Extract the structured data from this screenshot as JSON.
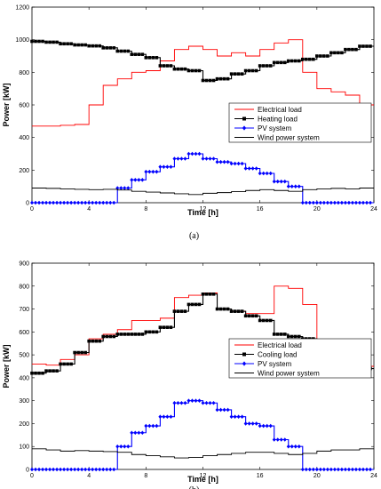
{
  "chart_data": [
    {
      "type": "line",
      "caption": "(a)",
      "xlabel": "Time [h]",
      "ylabel": "Power [kW]",
      "xlim": [
        0,
        24
      ],
      "ylim": [
        0,
        1200
      ],
      "xticks": [
        0,
        4,
        8,
        12,
        16,
        20,
        24
      ],
      "yticks": [
        0,
        200,
        400,
        600,
        800,
        1000,
        1200
      ],
      "grid": false,
      "legend_position": "center-right",
      "series": [
        {
          "name": "Electrical load",
          "color": "#ff0000",
          "marker": "none",
          "x": [
            0,
            1,
            2,
            3,
            4,
            5,
            6,
            7,
            8,
            9,
            10,
            11,
            12,
            13,
            14,
            15,
            16,
            17,
            18,
            19,
            20,
            21,
            22,
            23,
            24
          ],
          "y": [
            470,
            470,
            475,
            480,
            600,
            720,
            760,
            800,
            810,
            870,
            940,
            960,
            940,
            900,
            920,
            900,
            940,
            980,
            1000,
            800,
            700,
            680,
            660,
            600,
            600
          ]
        },
        {
          "name": "Heating load",
          "color": "#000000",
          "marker": "square",
          "x": [
            0,
            1,
            2,
            3,
            4,
            5,
            6,
            7,
            8,
            9,
            10,
            11,
            12,
            13,
            14,
            15,
            16,
            17,
            18,
            19,
            20,
            21,
            22,
            23,
            24
          ],
          "y": [
            990,
            985,
            975,
            968,
            962,
            950,
            930,
            910,
            890,
            840,
            820,
            810,
            750,
            760,
            790,
            810,
            840,
            860,
            870,
            880,
            900,
            920,
            940,
            960,
            970
          ]
        },
        {
          "name": "PV system",
          "color": "#0000ff",
          "marker": "diamond",
          "x": [
            0,
            1,
            2,
            3,
            4,
            5,
            6,
            7,
            8,
            9,
            10,
            11,
            12,
            13,
            14,
            15,
            16,
            17,
            18,
            19,
            20,
            21,
            22,
            23,
            24
          ],
          "y": [
            0,
            0,
            0,
            0,
            0,
            0,
            90,
            140,
            190,
            220,
            270,
            300,
            270,
            250,
            240,
            210,
            180,
            130,
            100,
            0,
            0,
            0,
            0,
            0,
            0
          ]
        },
        {
          "name": "Wind power system",
          "color": "#000000",
          "marker": "none",
          "x": [
            0,
            1,
            2,
            3,
            4,
            5,
            6,
            7,
            8,
            9,
            10,
            11,
            12,
            13,
            14,
            15,
            16,
            17,
            18,
            19,
            20,
            21,
            22,
            23,
            24
          ],
          "y": [
            90,
            88,
            85,
            82,
            80,
            82,
            78,
            70,
            65,
            60,
            55,
            50,
            58,
            62,
            68,
            75,
            80,
            75,
            70,
            80,
            85,
            88,
            85,
            90,
            90
          ]
        }
      ]
    },
    {
      "type": "line",
      "caption": "(b)",
      "xlabel": "Time [h]",
      "ylabel": "Power [kW]",
      "xlim": [
        0,
        24
      ],
      "ylim": [
        0,
        900
      ],
      "xticks": [
        0,
        4,
        8,
        12,
        16,
        20,
        24
      ],
      "yticks": [
        0,
        100,
        200,
        300,
        400,
        500,
        600,
        700,
        800,
        900
      ],
      "grid": false,
      "legend_position": "center-right",
      "series": [
        {
          "name": "Electrical load",
          "color": "#ff0000",
          "marker": "none",
          "x": [
            0,
            1,
            2,
            3,
            4,
            5,
            6,
            7,
            8,
            9,
            10,
            11,
            12,
            13,
            14,
            15,
            16,
            17,
            18,
            19,
            20,
            21,
            22,
            23,
            24
          ],
          "y": [
            460,
            455,
            480,
            500,
            570,
            590,
            610,
            650,
            650,
            660,
            750,
            760,
            770,
            700,
            690,
            680,
            680,
            800,
            790,
            720,
            540,
            530,
            500,
            450,
            400
          ]
        },
        {
          "name": "Cooling load",
          "color": "#000000",
          "marker": "square",
          "x": [
            0,
            1,
            2,
            3,
            4,
            5,
            6,
            7,
            8,
            9,
            10,
            11,
            12,
            13,
            14,
            15,
            16,
            17,
            18,
            19,
            20,
            21,
            22,
            23,
            24
          ],
          "y": [
            420,
            430,
            460,
            510,
            560,
            580,
            590,
            590,
            600,
            620,
            690,
            720,
            765,
            700,
            690,
            670,
            650,
            590,
            580,
            570,
            550,
            530,
            480,
            440,
            430
          ]
        },
        {
          "name": "PV system",
          "color": "#0000ff",
          "marker": "diamond",
          "x": [
            0,
            1,
            2,
            3,
            4,
            5,
            6,
            7,
            8,
            9,
            10,
            11,
            12,
            13,
            14,
            15,
            16,
            17,
            18,
            19,
            20,
            21,
            22,
            23,
            24
          ],
          "y": [
            0,
            0,
            0,
            0,
            0,
            0,
            100,
            160,
            190,
            230,
            290,
            300,
            290,
            260,
            230,
            200,
            190,
            130,
            100,
            0,
            0,
            0,
            0,
            0,
            0
          ]
        },
        {
          "name": "Wind power system",
          "color": "#000000",
          "marker": "none",
          "x": [
            0,
            1,
            2,
            3,
            4,
            5,
            6,
            7,
            8,
            9,
            10,
            11,
            12,
            13,
            14,
            15,
            16,
            17,
            18,
            19,
            20,
            21,
            22,
            23,
            24
          ],
          "y": [
            90,
            85,
            80,
            82,
            80,
            78,
            75,
            65,
            60,
            55,
            50,
            52,
            60,
            65,
            70,
            75,
            75,
            70,
            65,
            70,
            80,
            85,
            85,
            90,
            90
          ]
        }
      ]
    }
  ]
}
